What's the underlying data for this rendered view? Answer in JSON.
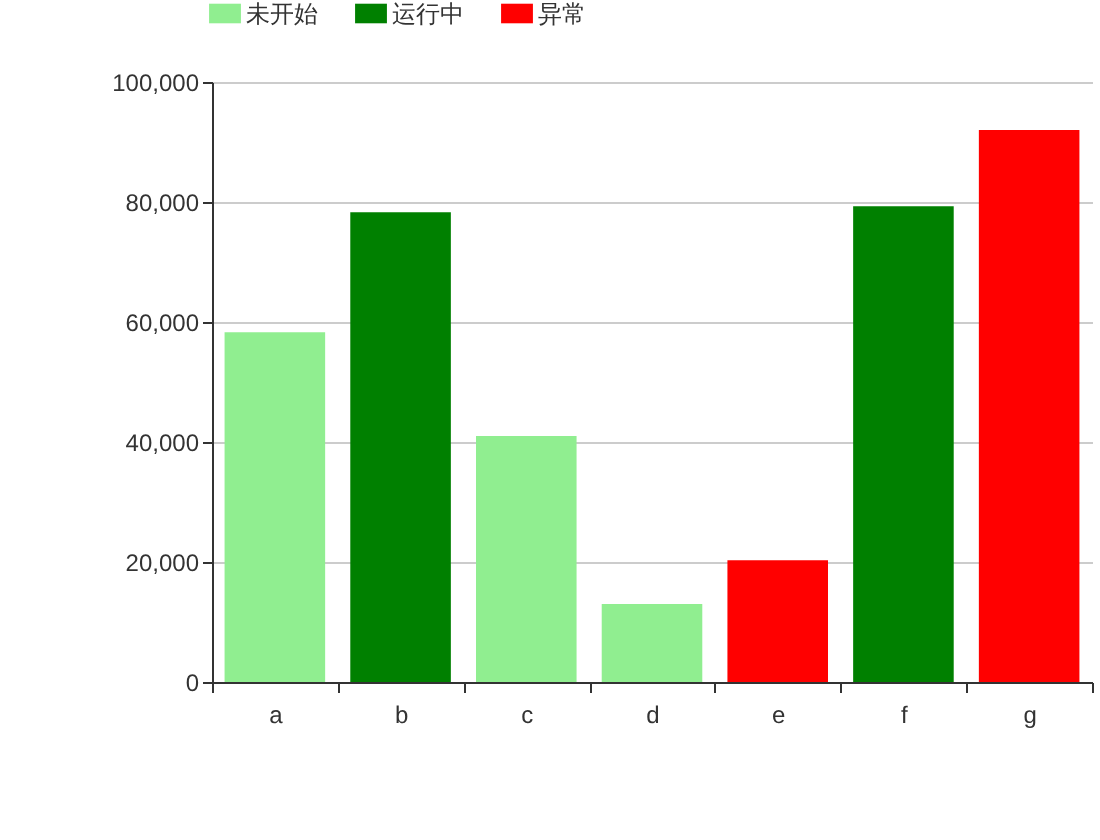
{
  "chart_data": {
    "type": "bar",
    "categories": [
      "a",
      "b",
      "c",
      "d",
      "e",
      "f",
      "g"
    ],
    "series": [
      {
        "name": "未开始",
        "color": "#90ee90",
        "values": [
          58300,
          null,
          41000,
          13000,
          null,
          null,
          null
        ]
      },
      {
        "name": "运行中",
        "color": "#008000",
        "values": [
          null,
          78300,
          null,
          null,
          null,
          79300,
          null
        ]
      },
      {
        "name": "异常",
        "color": "#ff0000",
        "values": [
          null,
          null,
          null,
          null,
          20300,
          null,
          92000
        ]
      }
    ],
    "ylim": [
      0,
      100000
    ],
    "yticks": [
      {
        "value": 0,
        "label": "0"
      },
      {
        "value": 20000,
        "label": "20,000"
      },
      {
        "value": 40000,
        "label": "40,000"
      },
      {
        "value": 60000,
        "label": "60,000"
      },
      {
        "value": 80000,
        "label": "80,000"
      },
      {
        "value": 100000,
        "label": "100,000"
      }
    ],
    "grid": "y",
    "legend": "top"
  }
}
